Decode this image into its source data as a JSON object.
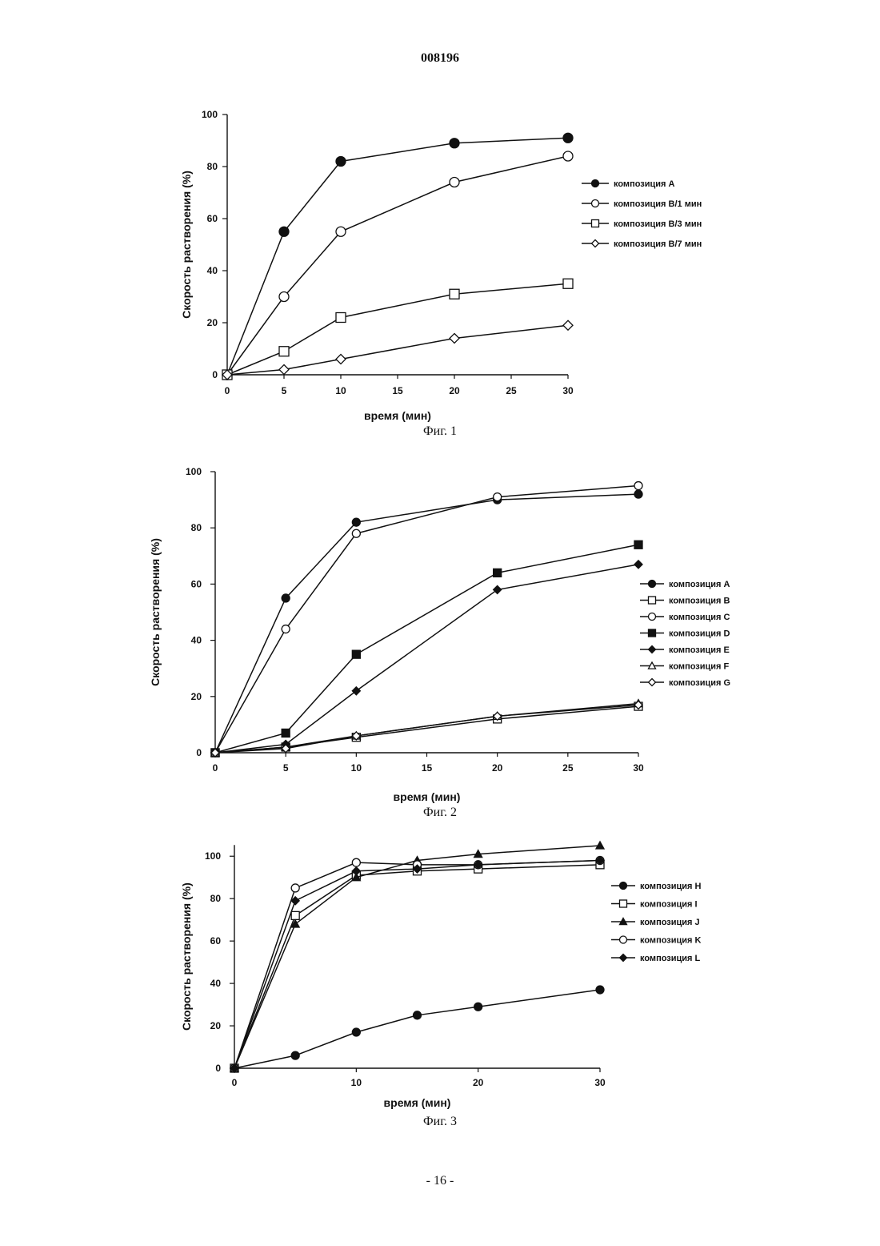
{
  "page": {
    "header": "008196",
    "footer": "- 16 -"
  },
  "chart_data": [
    {
      "type": "line",
      "caption": "Фиг. 1",
      "xlabel": "время (мин)",
      "ylabel": "Скорость растворения (%)",
      "xlim": [
        0,
        30
      ],
      "ylim": [
        0,
        100
      ],
      "xticks": [
        0,
        5,
        10,
        15,
        20,
        25,
        30
      ],
      "yticks": [
        0,
        20,
        40,
        60,
        80,
        100
      ],
      "legend_position": "right",
      "series": [
        {
          "name": "композиция A",
          "marker": "circle-filled",
          "x": [
            0,
            5,
            10,
            20,
            30
          ],
          "values": [
            0,
            55,
            82,
            89,
            91
          ]
        },
        {
          "name": "композиция B/1 мин",
          "marker": "circle-open",
          "x": [
            0,
            5,
            10,
            20,
            30
          ],
          "values": [
            0,
            30,
            55,
            74,
            84
          ]
        },
        {
          "name": "композиция B/3 мин",
          "marker": "square-open",
          "x": [
            0,
            5,
            10,
            20,
            30
          ],
          "values": [
            0,
            9,
            22,
            31,
            35
          ]
        },
        {
          "name": "композиция B/7 мин",
          "marker": "diamond-open",
          "x": [
            0,
            5,
            10,
            20,
            30
          ],
          "values": [
            0,
            2,
            6,
            14,
            19
          ]
        }
      ]
    },
    {
      "type": "line",
      "caption": "Фиг. 2",
      "xlabel": "время (мин)",
      "ylabel": "Скорость растворения (%)",
      "xlim": [
        0,
        30
      ],
      "ylim": [
        0,
        100
      ],
      "xticks": [
        0,
        5,
        10,
        15,
        20,
        25,
        30
      ],
      "yticks": [
        0,
        20,
        40,
        60,
        80,
        100
      ],
      "legend_position": "right",
      "series": [
        {
          "name": "композиция A",
          "marker": "circle-filled",
          "x": [
            0,
            5,
            10,
            20,
            30
          ],
          "values": [
            0,
            55,
            82,
            90,
            92
          ]
        },
        {
          "name": "композиция B",
          "marker": "square-open",
          "x": [
            0,
            5,
            10,
            20,
            30
          ],
          "values": [
            0,
            2,
            5.5,
            12,
            16.5
          ]
        },
        {
          "name": "композиция C",
          "marker": "circle-open",
          "x": [
            0,
            5,
            10,
            20,
            30
          ],
          "values": [
            0,
            44,
            78,
            91,
            95
          ]
        },
        {
          "name": "композиция D",
          "marker": "square-filled",
          "x": [
            0,
            5,
            10,
            20,
            30
          ],
          "values": [
            0,
            7,
            35,
            64,
            74
          ]
        },
        {
          "name": "композиция E",
          "marker": "diamond-filled",
          "x": [
            0,
            5,
            10,
            20,
            30
          ],
          "values": [
            0,
            3,
            22,
            58,
            67
          ]
        },
        {
          "name": "композиция F",
          "marker": "triangle-open",
          "x": [
            0,
            5,
            10,
            20,
            30
          ],
          "values": [
            0,
            2,
            6,
            13,
            17.5
          ]
        },
        {
          "name": "композиция G",
          "marker": "diamond-open",
          "x": [
            0,
            5,
            10,
            20,
            30
          ],
          "values": [
            0,
            1.5,
            6,
            13,
            17
          ]
        }
      ]
    },
    {
      "type": "line",
      "caption": "Фиг. 3",
      "xlabel": "время (мин)",
      "ylabel": "Скорость растворения (%)",
      "xlim": [
        0,
        30
      ],
      "ylim": [
        0,
        105
      ],
      "xticks": [
        0,
        10,
        20,
        30
      ],
      "yticks": [
        0,
        20,
        40,
        60,
        80,
        100
      ],
      "legend_position": "right",
      "series": [
        {
          "name": "композиция H",
          "marker": "circle-filled",
          "x": [
            0,
            5,
            10,
            15,
            20,
            30
          ],
          "values": [
            0,
            6,
            17,
            25,
            29,
            37
          ]
        },
        {
          "name": "композиция I",
          "marker": "square-open",
          "x": [
            0,
            5,
            10,
            15,
            20,
            30
          ],
          "values": [
            0,
            72,
            91,
            93,
            94,
            96
          ]
        },
        {
          "name": "композиция J",
          "marker": "triangle-filled",
          "x": [
            0,
            5,
            10,
            15,
            20,
            30
          ],
          "values": [
            0,
            68,
            90,
            98,
            101,
            105
          ]
        },
        {
          "name": "композиция K",
          "marker": "circle-open",
          "x": [
            0,
            5,
            10,
            15,
            20,
            30
          ],
          "values": [
            0,
            85,
            97,
            96,
            96,
            98
          ]
        },
        {
          "name": "композиция L",
          "marker": "diamond-filled",
          "x": [
            0,
            5,
            10,
            15,
            20,
            30
          ],
          "values": [
            0,
            79,
            93,
            94,
            96,
            98
          ]
        }
      ]
    }
  ]
}
